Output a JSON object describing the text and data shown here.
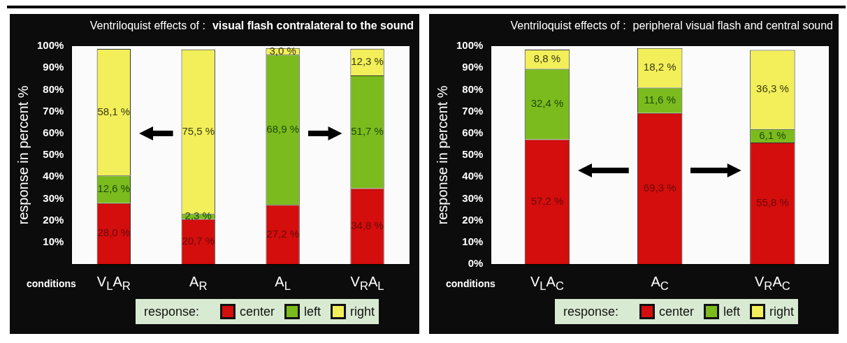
{
  "chart_data": [
    {
      "type": "bar",
      "title": "Ventriloquist effects of :",
      "subtitle": "visual flash contralateral to the sound",
      "xlabel": "conditions",
      "ylabel": "response in percent %",
      "legend_title": "response:",
      "categories": [
        "V$_{L}$A$_{R}$",
        "A$_{R}$",
        "A$_{L}$",
        "V$_{R}$A$_{L}$"
      ],
      "stacked": true,
      "ylim": [
        0,
        100
      ],
      "yticks": [
        {
          "value": 0,
          "label": null
        },
        {
          "value": 10,
          "label": "10%"
        },
        {
          "value": 20,
          "label": "20%"
        },
        {
          "value": 30,
          "label": "30%"
        },
        {
          "value": 40,
          "label": "40%"
        },
        {
          "value": 50,
          "label": "50%"
        },
        {
          "value": 60,
          "label": "60%"
        },
        {
          "value": 70,
          "label": "70%"
        },
        {
          "value": 80,
          "label": "80%"
        },
        {
          "value": 90,
          "label": "90%"
        },
        {
          "value": 100,
          "label": "100%"
        }
      ],
      "grid": false,
      "legend": "bottom",
      "series": [
        {
          "name": "center",
          "color": "#d40d0d",
          "values": [
            28.0,
            20.7,
            27.2,
            34.8
          ],
          "value_labels": [
            "28,0 %",
            "20,7 %",
            "27,2 %",
            "34,8 %"
          ]
        },
        {
          "name": "left",
          "color": "#7bbb1d",
          "values": [
            12.6,
            2.3,
            68.9,
            51.7
          ],
          "value_labels": [
            "12,6 %",
            "2,3 %",
            "68,9 %",
            "51,7 %"
          ]
        },
        {
          "name": "right",
          "color": "#f2ef5a",
          "values": [
            58.1,
            75.5,
            3.0,
            12.3
          ],
          "value_labels": [
            "58,1 %",
            "75,5 %",
            "3,0 %",
            "12,3 %"
          ]
        }
      ]
    },
    {
      "type": "bar",
      "title": "Ventriloquist effects of :",
      "subtitle": "peripheral visual flash and central sound",
      "xlabel": "conditions",
      "ylabel": "response in percent %",
      "legend_title": "response:",
      "categories": [
        "V$_{L}$A$_{C}$",
        "A$_{C}$",
        "V$_{R}$A$_{C}$"
      ],
      "stacked": true,
      "ylim": [
        0,
        100
      ],
      "yticks": [
        {
          "value": 0,
          "label": "0%"
        },
        {
          "value": 10,
          "label": "10%"
        },
        {
          "value": 20,
          "label": "20%"
        },
        {
          "value": 30,
          "label": "30%"
        },
        {
          "value": 40,
          "label": "40%"
        },
        {
          "value": 50,
          "label": "50%"
        },
        {
          "value": 60,
          "label": "60%"
        },
        {
          "value": 70,
          "label": "70%"
        },
        {
          "value": 80,
          "label": "80%"
        },
        {
          "value": 90,
          "label": "90%"
        },
        {
          "value": 100,
          "label": "100%"
        }
      ],
      "grid": false,
      "legend": "bottom",
      "series": [
        {
          "name": "center",
          "color": "#d40d0d",
          "values": [
            57.2,
            69.3,
            55.8
          ],
          "value_labels": [
            "57,2 %",
            "69,3 %",
            "55,8 %"
          ]
        },
        {
          "name": "left",
          "color": "#7bbb1d",
          "values": [
            32.4,
            11.6,
            6.1
          ],
          "value_labels": [
            "32,4 %",
            "11,6 %",
            "6,1 %"
          ]
        },
        {
          "name": "right",
          "color": "#f2ef5a",
          "values": [
            8.8,
            18.2,
            36.3
          ],
          "value_labels": [
            "8,8 %",
            "18,2 %",
            "36,3 %"
          ]
        }
      ]
    }
  ]
}
